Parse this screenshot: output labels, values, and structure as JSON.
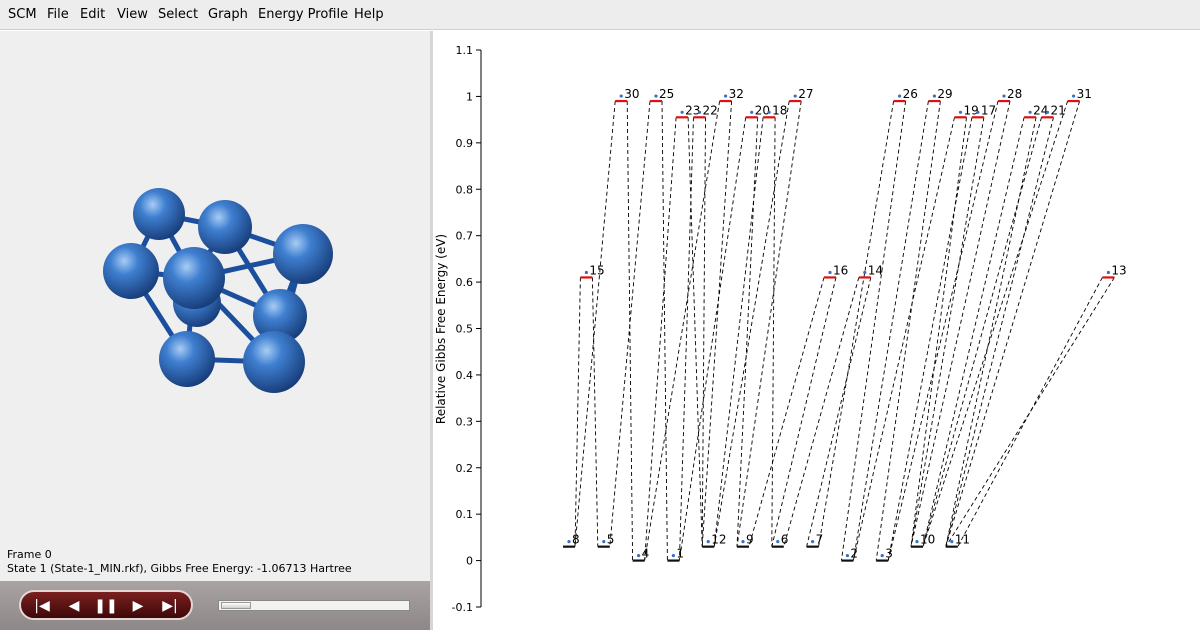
{
  "menu": {
    "scm": "SCM",
    "file": "File",
    "edit": "Edit",
    "view": "View",
    "select": "Select",
    "graph": "Graph",
    "energy_profile": "Energy Profile",
    "help": "Help"
  },
  "status": {
    "frame": "Frame 0",
    "state": "State 1 (State-1_MIN.rkf), Gibbs Free Energy: -1.06713 Hartree"
  },
  "player": {
    "first_icon": "skip-to-start-icon",
    "back_icon": "step-back-icon",
    "pause_icon": "pause-icon",
    "forward_icon": "play-icon",
    "last_icon": "skip-to-end-icon",
    "slider_value": 0.0
  },
  "colors": {
    "atom": "#3a78c9",
    "bond": "#1f52a6",
    "ts_level": "#dd1111",
    "min_level": "#111111"
  },
  "chart_data": {
    "type": "line",
    "ylabel": "Relative Gibbs Free Energy (eV)",
    "ylim": [
      -0.1,
      1.1
    ],
    "yticks": [
      "-0.1",
      "0",
      "0.1",
      "0.2",
      "0.3",
      "0.4",
      "0.5",
      "0.6",
      "0.7",
      "0.8",
      "0.9",
      "1",
      "1.1"
    ],
    "ytick_values": [
      -0.1,
      0,
      0.1,
      0.2,
      0.3,
      0.4,
      0.5,
      0.6,
      0.7,
      0.8,
      0.9,
      1.0,
      1.1
    ],
    "minima": [
      {
        "label": "8",
        "slot": 0,
        "energy": 0.03
      },
      {
        "label": "5",
        "slot": 1,
        "energy": 0.03
      },
      {
        "label": "4",
        "slot": 2,
        "energy": 0.0
      },
      {
        "label": "1",
        "slot": 3,
        "energy": 0.0
      },
      {
        "label": "12",
        "slot": 4,
        "energy": 0.03
      },
      {
        "label": "9",
        "slot": 5,
        "energy": 0.03
      },
      {
        "label": "6",
        "slot": 6,
        "energy": 0.03
      },
      {
        "label": "7",
        "slot": 7,
        "energy": 0.03
      },
      {
        "label": "2",
        "slot": 8,
        "energy": 0.0
      },
      {
        "label": "3",
        "slot": 9,
        "energy": 0.0
      },
      {
        "label": "10",
        "slot": 10,
        "energy": 0.03
      },
      {
        "label": "11",
        "slot": 11,
        "energy": 0.03
      }
    ],
    "transition_states": [
      {
        "label": "15",
        "slot": 0.5,
        "energy": 0.61,
        "from": "8",
        "to": "5"
      },
      {
        "label": "30",
        "slot": 1.5,
        "energy": 0.99,
        "from": "8",
        "to": "4"
      },
      {
        "label": "25",
        "slot": 2.5,
        "energy": 0.99,
        "from": "5",
        "to": "1"
      },
      {
        "label": "23",
        "slot": 3.25,
        "energy": 0.955,
        "from": "4",
        "to": "12"
      },
      {
        "label": "22",
        "slot": 3.75,
        "energy": 0.955,
        "from": "1",
        "to": "12"
      },
      {
        "label": "32",
        "slot": 4.5,
        "energy": 0.99,
        "from": "4",
        "to": "12"
      },
      {
        "label": "20",
        "slot": 5.25,
        "energy": 0.955,
        "from": "1",
        "to": "9"
      },
      {
        "label": "18",
        "slot": 5.75,
        "energy": 0.955,
        "from": "12",
        "to": "6"
      },
      {
        "label": "27",
        "slot": 6.5,
        "energy": 0.99,
        "from": "12",
        "to": "9"
      },
      {
        "label": "16",
        "slot": 7.5,
        "energy": 0.61,
        "from": "9",
        "to": "6"
      },
      {
        "label": "14",
        "slot": 8.5,
        "energy": 0.61,
        "from": "6",
        "to": "7"
      },
      {
        "label": "26",
        "slot": 9.5,
        "energy": 0.99,
        "from": "7",
        "to": "2"
      },
      {
        "label": "29",
        "slot": 10.5,
        "energy": 0.99,
        "from": "2",
        "to": "3"
      },
      {
        "label": "19",
        "slot": 11.25,
        "energy": 0.955,
        "from": "2",
        "to": "10"
      },
      {
        "label": "17",
        "slot": 11.75,
        "energy": 0.955,
        "from": "3",
        "to": "10"
      },
      {
        "label": "28",
        "slot": 12.5,
        "energy": 0.99,
        "from": "3",
        "to": "10"
      },
      {
        "label": "24",
        "slot": 13.25,
        "energy": 0.955,
        "from": "10",
        "to": "11"
      },
      {
        "label": "21",
        "slot": 13.75,
        "energy": 0.955,
        "from": "10",
        "to": "11"
      },
      {
        "label": "31",
        "slot": 14.5,
        "energy": 0.99,
        "from": "10",
        "to": "11"
      },
      {
        "label": "13",
        "slot": 15.5,
        "energy": 0.61,
        "from": "11",
        "to": "11"
      }
    ]
  }
}
